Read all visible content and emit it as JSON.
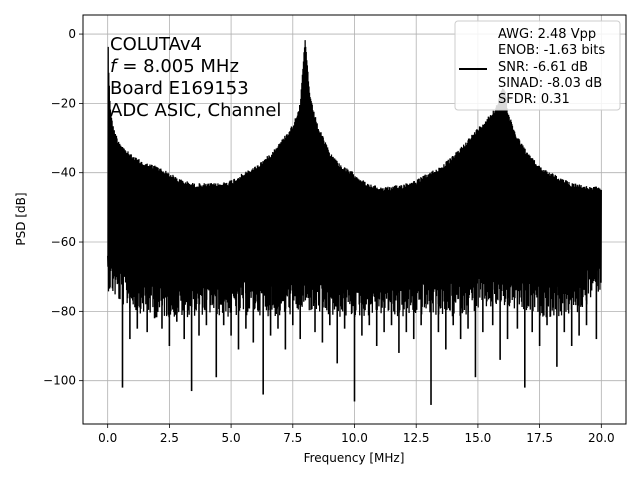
{
  "chart_data": {
    "type": "line",
    "xlabel": "Frequency [MHz]",
    "ylabel": "PSD [dB]",
    "xlim": [
      -1.0,
      21.0
    ],
    "ylim": [
      -112.5,
      5.5
    ],
    "x_ticks": [
      0.0,
      2.5,
      5.0,
      7.5,
      10.0,
      12.5,
      15.0,
      17.5,
      20.0
    ],
    "x_tick_labels": [
      "0.0",
      "2.5",
      "5.0",
      "7.5",
      "10.0",
      "12.5",
      "15.0",
      "17.5",
      "20.0"
    ],
    "y_ticks": [
      0,
      -20,
      -40,
      -60,
      -80,
      -100
    ],
    "y_tick_labels": [
      "0",
      "−20",
      "−40",
      "−60",
      "−80",
      "−100"
    ],
    "grid": true,
    "line_color": "#000000",
    "annotation_lines": [
      "COLUTAv4",
      "= 8.005 MHz",
      "Board E169153",
      "ADC ASIC, Channel"
    ],
    "annotation_f_symbol": "f",
    "legend": {
      "placement": "top-right",
      "lines": [
        "AWG: 2.48 Vpp",
        "ENOB: -1.63 bits",
        "SNR: -6.61 dB",
        "SINAD: -8.03 dB",
        "SFDR: 0.31"
      ]
    },
    "series": [
      {
        "upper_envelope": {
          "x": [
            0.0,
            0.02,
            0.05,
            0.1,
            0.2,
            0.4,
            0.7,
            1.0,
            1.5,
            2.0,
            2.5,
            3.0,
            3.5,
            4.0,
            4.5,
            5.0,
            5.5,
            6.0,
            6.5,
            7.0,
            7.5,
            7.8,
            8.0,
            8.2,
            8.5,
            9.0,
            9.5,
            10.0,
            10.5,
            11.0,
            11.5,
            12.0,
            12.5,
            13.0,
            13.5,
            14.0,
            14.5,
            15.0,
            15.5,
            15.8,
            16.0,
            16.1,
            16.2,
            16.5,
            17.0,
            17.5,
            18.0,
            18.5,
            19.0,
            19.5,
            20.0
          ],
          "y": [
            -63,
            -2,
            -12,
            -20,
            -26,
            -30,
            -33,
            -35,
            -37,
            -38,
            -40,
            -42,
            -43,
            -43,
            -43,
            -42,
            -40,
            -38,
            -35,
            -31,
            -26,
            -20,
            -1,
            -18,
            -26,
            -34,
            -38,
            -40,
            -43,
            -44,
            -44,
            -43,
            -42,
            -40,
            -38,
            -35,
            -31,
            -27,
            -23,
            -20,
            -15,
            -15,
            -22,
            -28,
            -34,
            -38,
            -40,
            -42,
            -43,
            -44,
            -44
          ]
        },
        "lower_envelope": {
          "x": [
            0.0,
            0.5,
            1.0,
            2.0,
            3.0,
            4.0,
            5.0,
            6.0,
            7.0,
            8.0,
            9.0,
            10.0,
            11.0,
            12.0,
            13.0,
            14.0,
            15.0,
            16.0,
            17.0,
            18.0,
            19.0,
            20.0
          ],
          "y": [
            -64,
            -68,
            -70,
            -72,
            -72,
            -71,
            -72,
            -71,
            -72,
            -70,
            -72,
            -72,
            -71,
            -72,
            -71,
            -72,
            -70,
            -69,
            -71,
            -72,
            -71,
            -64
          ]
        },
        "deep_nulls": {
          "x": [
            0.6,
            0.9,
            1.2,
            1.6,
            1.9,
            2.2,
            2.5,
            2.8,
            3.1,
            3.4,
            3.7,
            4.0,
            4.4,
            4.7,
            5.0,
            5.3,
            5.6,
            5.9,
            6.3,
            6.6,
            6.9,
            7.2,
            7.5,
            7.8,
            8.4,
            8.7,
            9.0,
            9.3,
            9.6,
            10.0,
            10.3,
            10.6,
            10.9,
            11.2,
            11.5,
            11.8,
            12.1,
            12.4,
            12.7,
            13.1,
            13.4,
            13.7,
            14.0,
            14.3,
            14.6,
            14.9,
            15.2,
            15.6,
            15.9,
            16.2,
            16.6,
            16.9,
            17.2,
            17.5,
            17.8,
            18.2,
            18.5,
            18.8,
            19.1,
            19.4,
            19.8
          ],
          "y": [
            -102,
            -88,
            -85,
            -86,
            -82,
            -85,
            -90,
            -83,
            -88,
            -103,
            -87,
            -84,
            -99,
            -84,
            -87,
            -91,
            -85,
            -89,
            -104,
            -87,
            -85,
            -91,
            -84,
            -88,
            -86,
            -89,
            -84,
            -95,
            -85,
            -106,
            -87,
            -84,
            -90,
            -86,
            -84,
            -92,
            -86,
            -88,
            -84,
            -107,
            -86,
            -91,
            -84,
            -88,
            -85,
            -99,
            -86,
            -84,
            -94,
            -88,
            -85,
            -102,
            -86,
            -90,
            -84,
            -96,
            -86,
            -90,
            -87,
            -84,
            -88
          ]
        }
      }
    ]
  }
}
